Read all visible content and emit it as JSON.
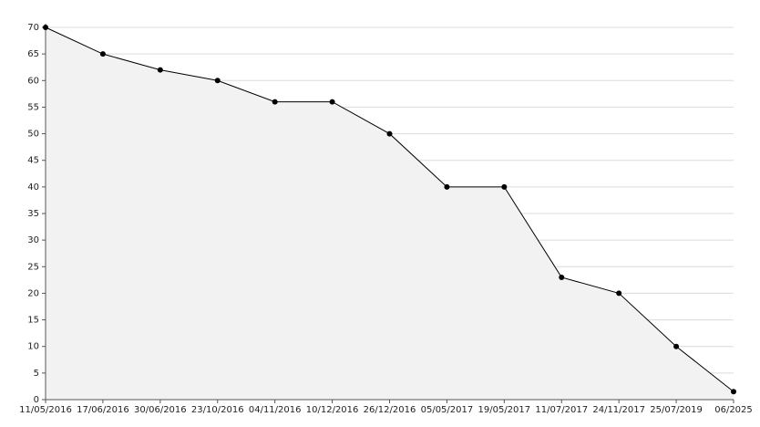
{
  "chart_data": {
    "type": "area",
    "categories": [
      "11/05/2016",
      "17/06/2016",
      "30/06/2016",
      "23/10/2016",
      "04/11/2016",
      "10/12/2016",
      "26/12/2016",
      "05/05/2017",
      "19/05/2017",
      "11/07/2017",
      "24/11/2017",
      "25/07/2019",
      "06/2025"
    ],
    "values": [
      70,
      65,
      62,
      60,
      56,
      56,
      50,
      40,
      40,
      23,
      20,
      10,
      1.5
    ],
    "color": "#000000",
    "fill": "#f2f2f2",
    "ylim": [
      0,
      70
    ],
    "yticks": [
      0,
      5,
      10,
      15,
      20,
      25,
      30,
      35,
      40,
      45,
      50,
      55,
      60,
      65,
      70
    ],
    "grid": true
  }
}
